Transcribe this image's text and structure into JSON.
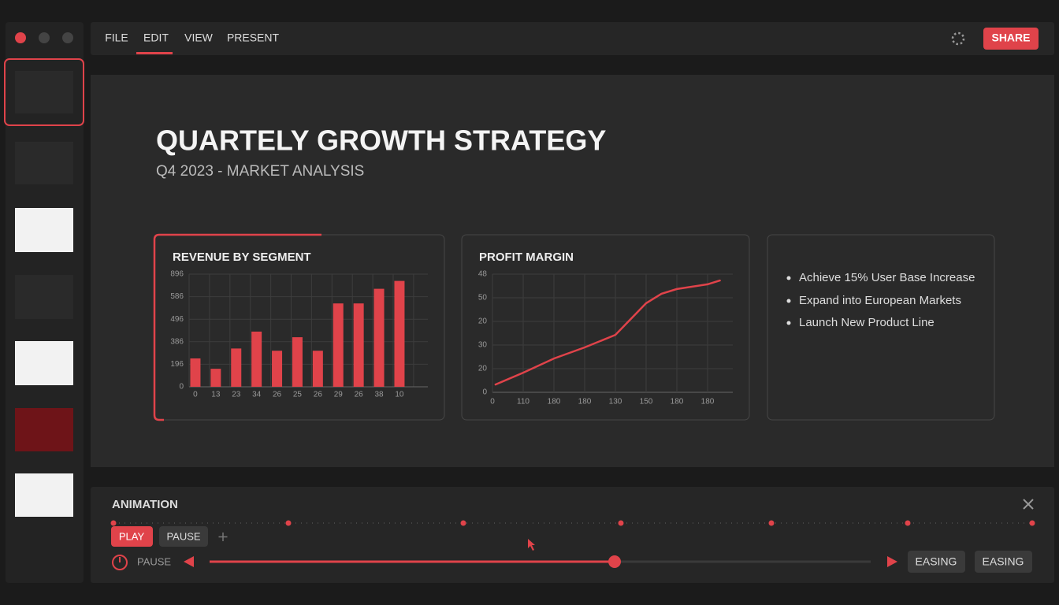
{
  "menu": {
    "items": [
      "FILE",
      "EDIT",
      "VIEW",
      "PRESENT"
    ],
    "share": "SHARE"
  },
  "slide": {
    "title": "QUARTELY GROWTH STRATEGY",
    "subtitle": "Q4 2023 - MARKET ANALYSIS",
    "bullets": [
      "Achieve 15% User Base Increase",
      "Expand into European Markets",
      "Launch New Product Line"
    ]
  },
  "animation": {
    "title": "ANIMATION",
    "play": "PLAY",
    "pause": "PAUSE",
    "state": "PAUSE",
    "easing": [
      "EASING",
      "EASING"
    ]
  },
  "chart_data": [
    {
      "type": "bar",
      "title": "REVENUE BY SEGMENT",
      "color": "#e0434a",
      "grid": true,
      "categories": [
        "0",
        "13",
        "23",
        "34",
        "26",
        "25",
        "26",
        "29",
        "26",
        "38",
        "10"
      ],
      "values": [
        1.26,
        0.8,
        1.7,
        2.45,
        1.6,
        2.2,
        1.6,
        3.7,
        3.7,
        4.35,
        4.7
      ],
      "ylim": [
        0,
        5
      ],
      "yticks": [
        0,
        {
          "value": 1,
          "label": "196"
        },
        {
          "value": 2,
          "label": "386"
        },
        {
          "value": 3,
          "label": "496"
        },
        {
          "value": 4,
          "label": "586"
        },
        {
          "value": 5,
          "label": "896"
        }
      ]
    },
    {
      "type": "line",
      "title": "PROFIT MARGIN",
      "color": "#e0434a",
      "grid": true,
      "x": [
        0.1,
        1,
        2,
        3,
        4,
        4.5,
        5,
        5.5,
        6,
        7,
        7.4
      ],
      "values": [
        0.33,
        0.83,
        1.43,
        1.9,
        2.43,
        3.1,
        3.77,
        4.17,
        4.37,
        4.57,
        4.73
      ],
      "xlim": [
        0,
        7.8
      ],
      "ylim": [
        0,
        5
      ],
      "xticks": [
        0,
        {
          "value": 1,
          "label": "110"
        },
        {
          "value": 2,
          "label": "180"
        },
        {
          "value": 3,
          "label": "180"
        },
        {
          "value": 4,
          "label": "130"
        },
        {
          "value": 5,
          "label": "150"
        },
        {
          "value": 6,
          "label": "180"
        },
        {
          "value": 7,
          "label": "180"
        }
      ],
      "yticks": [
        0,
        {
          "value": 1,
          "label": "20"
        },
        {
          "value": 2,
          "label": "30"
        },
        {
          "value": 3,
          "label": "20"
        },
        {
          "value": 4,
          "label": "50"
        },
        {
          "value": 5,
          "label": "48"
        }
      ]
    }
  ]
}
